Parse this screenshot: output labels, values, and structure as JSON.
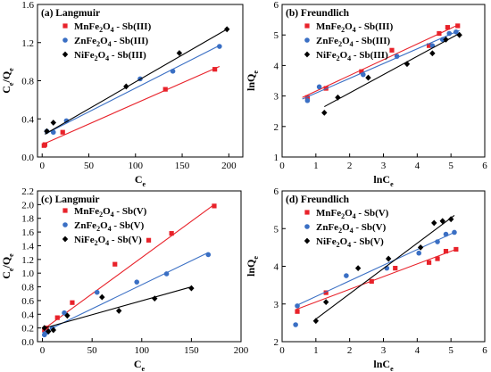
{
  "chart_data": [
    {
      "type": "scatter",
      "panel": "(a)",
      "title": "Langmuir",
      "xlabel": {
        "base": "C",
        "sub": "e"
      },
      "ylabel": {
        "base": "C",
        "sub1": "e",
        "mid": "/Q",
        "sub2": "e"
      },
      "xlim": [
        -5,
        215
      ],
      "ylim": [
        0,
        1.6
      ],
      "xticks": [
        "0",
        "50",
        "100",
        "150",
        "200"
      ],
      "yticks": [
        "0.0",
        "0.4",
        "0.8",
        "1.2",
        "1.6"
      ],
      "xtick_values": [
        0,
        50,
        100,
        150,
        200
      ],
      "ytick_values": [
        0,
        0.4,
        0.8,
        1.2,
        1.6
      ],
      "series": [
        {
          "name": "MnFe2O4 - Sb(III)",
          "label_base": "MnFe",
          "label_sub": "2",
          "label_mid": "O",
          "label_sub2": "4",
          "label_tail": " - Sb(III)",
          "color": "#e8222a",
          "marker": "square",
          "x": [
            2,
            3,
            22,
            132,
            185
          ],
          "y": [
            0.12,
            0.13,
            0.26,
            0.71,
            0.92
          ],
          "line": [
            0,
            0.13,
            190,
            0.95
          ]
        },
        {
          "name": "ZnFe2O4 - Sb(III)",
          "label_base": "ZnFe",
          "label_sub": "2",
          "label_mid": "O",
          "label_sub2": "4",
          "label_tail": " - Sb(III)",
          "color": "#3a6fc4",
          "marker": "circle",
          "x": [
            5,
            12,
            26,
            105,
            140,
            190
          ],
          "y": [
            0.27,
            0.26,
            0.38,
            0.82,
            0.9,
            1.16
          ],
          "line": [
            3,
            0.24,
            190,
            1.17
          ]
        },
        {
          "name": "NiFe2O4 - Sb(III)",
          "label_base": "NiFe",
          "label_sub": "2",
          "label_mid": "O",
          "label_sub2": "4",
          "label_tail": " - Sb(III)",
          "color": "#000000",
          "marker": "diamond",
          "x": [
            5,
            12,
            90,
            147,
            198
          ],
          "y": [
            0.27,
            0.36,
            0.74,
            1.09,
            1.34
          ],
          "line": [
            3,
            0.24,
            198,
            1.34
          ]
        }
      ]
    },
    {
      "type": "scatter",
      "panel": "(b)",
      "title": "Freundlich",
      "xlabel": {
        "base": "lnC",
        "sub": "e"
      },
      "ylabel": {
        "base": "lnQ",
        "sub": "e"
      },
      "xlim": [
        0,
        6
      ],
      "ylim": [
        1,
        6
      ],
      "xticks": [
        "0",
        "1",
        "2",
        "3",
        "4",
        "5",
        "6"
      ],
      "yticks": [
        "1",
        "2",
        "3",
        "4",
        "5",
        "6"
      ],
      "xtick_values": [
        0,
        1,
        2,
        3,
        4,
        5,
        6
      ],
      "ytick_values": [
        1,
        2,
        3,
        4,
        5,
        6
      ],
      "series": [
        {
          "name": "MnFe2O4 - Sb(III)",
          "label_base": "MnFe",
          "label_sub": "2",
          "label_mid": "O",
          "label_sub2": "4",
          "label_tail": " - Sb(III)",
          "color": "#e8222a",
          "marker": "square",
          "x": [
            0.75,
            1.3,
            2.35,
            3.25,
            4.35,
            4.65,
            4.9,
            5.2
          ],
          "y": [
            2.95,
            3.25,
            3.8,
            4.5,
            4.65,
            5.05,
            5.25,
            5.3
          ],
          "line": [
            0.6,
            2.95,
            5.25,
            5.35
          ]
        },
        {
          "name": "ZnFe2O4 - Sb(III)",
          "label_base": "ZnFe",
          "label_sub": "2",
          "label_mid": "O",
          "label_sub2": "4",
          "label_tail": " - Sb(III)",
          "color": "#3a6fc4",
          "marker": "circle",
          "x": [
            0.75,
            1.1,
            2.4,
            3.4,
            4.45,
            4.75,
            4.95,
            5.15
          ],
          "y": [
            2.85,
            3.3,
            3.7,
            4.3,
            4.65,
            4.85,
            5.05,
            5.1
          ],
          "line": [
            0.6,
            2.9,
            5.25,
            5.15
          ]
        },
        {
          "name": "NiFe2O4 - Sb(III)",
          "label_base": "NiFe",
          "label_sub": "2",
          "label_mid": "O",
          "label_sub2": "4",
          "label_tail": " - Sb(III)",
          "color": "#000000",
          "marker": "diamond",
          "x": [
            1.25,
            1.65,
            2.55,
            3.7,
            4.45,
            4.85,
            5.25
          ],
          "y": [
            2.45,
            2.95,
            3.6,
            4.05,
            4.4,
            4.85,
            5.0
          ],
          "line": [
            1.25,
            2.65,
            5.25,
            5.05
          ]
        }
      ]
    },
    {
      "type": "scatter",
      "panel": "(c)",
      "title": "Langmuir",
      "xlabel": {
        "base": "C",
        "sub": "e"
      },
      "ylabel": {
        "base": "C",
        "sub1": "e",
        "mid": "/Q",
        "sub2": "e"
      },
      "xlim": [
        -5,
        200
      ],
      "ylim": [
        0,
        2.2
      ],
      "xticks": [
        "0",
        "50",
        "100",
        "150",
        "200"
      ],
      "yticks": [
        "0.0",
        "0.2",
        "0.4",
        "0.6",
        "0.8",
        "1.0",
        "1.2",
        "1.4",
        "1.6",
        "1.8",
        "2.0",
        "2.2"
      ],
      "xtick_values": [
        0,
        50,
        100,
        150,
        200
      ],
      "ytick_values": [
        0,
        0.2,
        0.4,
        0.6,
        0.8,
        1.0,
        1.2,
        1.4,
        1.6,
        1.8,
        2.0,
        2.2
      ],
      "series": [
        {
          "name": "MnFe2O4 - Sb(V)",
          "label_base": "MnFe",
          "label_sub": "2",
          "label_mid": "O",
          "label_sub2": "4",
          "label_tail": " - Sb(V)",
          "color": "#e8222a",
          "marker": "square",
          "x": [
            2,
            4,
            15,
            30,
            73,
            107,
            130,
            173
          ],
          "y": [
            0.17,
            0.2,
            0.35,
            0.57,
            1.13,
            1.48,
            1.58,
            1.98
          ],
          "line": [
            0,
            0.17,
            173,
            2.0
          ]
        },
        {
          "name": "ZnFe2O4 - Sb(V)",
          "label_base": "ZnFe",
          "label_sub": "2",
          "label_mid": "O",
          "label_sub2": "4",
          "label_tail": " - Sb(V)",
          "color": "#3a6fc4",
          "marker": "circle",
          "x": [
            2,
            5,
            10,
            22,
            55,
            95,
            125,
            167
          ],
          "y": [
            0.1,
            0.14,
            0.2,
            0.42,
            0.72,
            0.87,
            0.99,
            1.27
          ],
          "line": [
            0,
            0.13,
            167,
            1.3
          ]
        },
        {
          "name": "NiFe2O4 - Sb(V)",
          "label_base": "NiFe",
          "label_sub": "2",
          "label_mid": "O",
          "label_sub2": "4",
          "label_tail": " - Sb(V)",
          "color": "#000000",
          "marker": "diamond",
          "x": [
            2,
            6,
            11,
            25,
            60,
            77,
            113,
            150
          ],
          "y": [
            0.2,
            0.15,
            0.17,
            0.38,
            0.65,
            0.45,
            0.63,
            0.78
          ],
          "line": [
            0,
            0.19,
            150,
            0.8
          ]
        }
      ]
    },
    {
      "type": "scatter",
      "panel": "(d)",
      "title": "Freundlich",
      "xlabel": {
        "base": "lnC",
        "sub": "e"
      },
      "ylabel": {
        "base": "lnQ",
        "sub": "e"
      },
      "xlim": [
        0,
        6
      ],
      "ylim": [
        2,
        6
      ],
      "xticks": [
        "0",
        "1",
        "2",
        "3",
        "4",
        "5",
        "6"
      ],
      "yticks": [
        "2",
        "3",
        "4",
        "5",
        "6"
      ],
      "xtick_values": [
        0,
        1,
        2,
        3,
        4,
        5,
        6
      ],
      "ytick_values": [
        2,
        3,
        4,
        5,
        6
      ],
      "series": [
        {
          "name": "MnFe2O4 - Sb(V)",
          "label_base": "MnFe",
          "label_sub": "2",
          "label_mid": "O",
          "label_sub2": "4",
          "label_tail": " - Sb(V)",
          "color": "#e8222a",
          "marker": "square",
          "x": [
            0.45,
            1.3,
            2.65,
            3.35,
            4.35,
            4.6,
            4.85,
            5.15
          ],
          "y": [
            2.8,
            3.3,
            3.6,
            3.95,
            4.1,
            4.2,
            4.4,
            4.45
          ],
          "line": [
            0.4,
            2.85,
            5.15,
            4.45
          ]
        },
        {
          "name": "ZnFe2O4 - Sb(V)",
          "label_base": "ZnFe",
          "label_sub": "2",
          "label_mid": "O",
          "label_sub2": "4",
          "label_tail": " - Sb(V)",
          "color": "#3a6fc4",
          "marker": "circle",
          "x": [
            0.4,
            0.45,
            1.9,
            3.1,
            4.05,
            4.6,
            4.85,
            5.1
          ],
          "y": [
            2.45,
            2.95,
            3.75,
            3.95,
            4.35,
            4.65,
            4.85,
            4.9
          ],
          "line": [
            0.4,
            2.95,
            5.1,
            4.9
          ]
        },
        {
          "name": "NiFe2O4 - Sb(V)",
          "label_base": "NiFe",
          "label_sub": "2",
          "label_mid": "O",
          "label_sub2": "4",
          "label_tail": " - Sb(V)",
          "color": "#000000",
          "marker": "diamond",
          "x": [
            1.0,
            1.3,
            2.25,
            3.15,
            4.1,
            4.5,
            4.75,
            5.0
          ],
          "y": [
            2.55,
            3.05,
            3.95,
            4.2,
            4.5,
            5.15,
            5.2,
            5.25
          ],
          "line": [
            1.0,
            2.6,
            5.1,
            5.35
          ]
        }
      ]
    }
  ]
}
